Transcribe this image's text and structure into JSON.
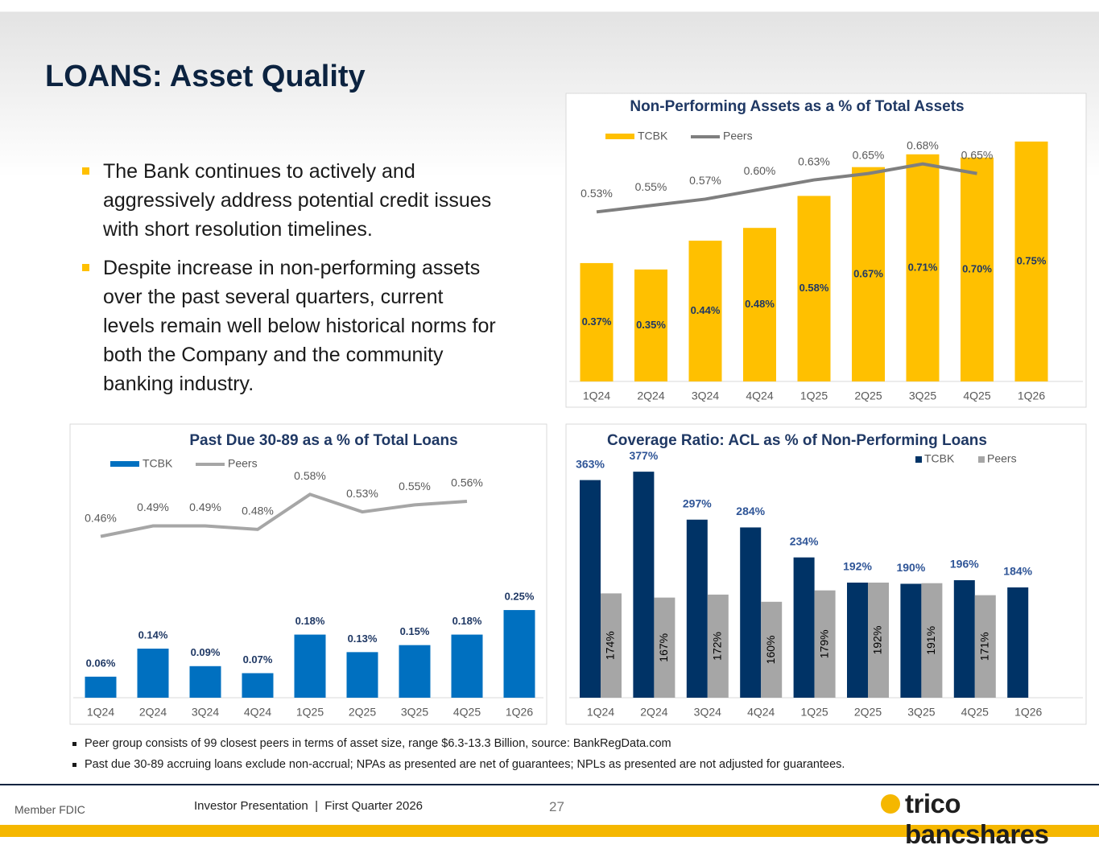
{
  "title": "LOANS: Asset Quality",
  "bullets": [
    "The Bank continues to actively and aggressively address potential credit issues with short resolution timelines.",
    "Despite increase in non-performing assets over the past several quarters, current levels remain well below historical norms for both the Company and the community banking industry."
  ],
  "notes": [
    "Peer group consists of 99 closest peers in terms of asset size, range $6.3-13.3 Billion, source: BankRegData.com",
    "Past due 30-89 accruing loans exclude non-accrual; NPAs as presented are net of guarantees; NPLs as presented are not adjusted for guarantees."
  ],
  "footer": {
    "fdic": "Member FDIC",
    "presentation": "Investor Presentation  |  First Quarter 2026",
    "page": 27,
    "logo": "trico bancshares"
  },
  "chart_data": [
    {
      "type": "bar_line",
      "title": "Non-Performing Assets as a % of Total Assets",
      "legend": "top-left",
      "categories": [
        "1Q24",
        "2Q24",
        "3Q24",
        "4Q24",
        "1Q25",
        "2Q25",
        "3Q25",
        "4Q25",
        "1Q26"
      ],
      "ylim": [
        0,
        0.8
      ],
      "series": [
        {
          "name": "TCBK",
          "type": "bar",
          "color": "#FFC000",
          "values": [
            0.37,
            0.35,
            0.44,
            0.48,
            0.58,
            0.67,
            0.71,
            0.7,
            0.75
          ],
          "value_labels": [
            "0.37%",
            "0.35%",
            "0.44%",
            "0.48%",
            "0.58%",
            "0.67%",
            "0.71%",
            "0.70%",
            "0.75%"
          ]
        },
        {
          "name": "Peers",
          "type": "line",
          "color": "#7F7F7F",
          "values": [
            0.53,
            0.55,
            0.57,
            0.6,
            0.63,
            0.65,
            0.68,
            0.65,
            null
          ],
          "value_labels": [
            "0.53%",
            "0.55%",
            "0.57%",
            "0.60%",
            "0.63%",
            "0.65%",
            "0.68%",
            "0.65%",
            null
          ]
        }
      ]
    },
    {
      "type": "bar_line",
      "title": "Past Due 30-89 as a % of Total Loans",
      "legend": "top-left",
      "categories": [
        "1Q24",
        "2Q24",
        "3Q24",
        "4Q24",
        "1Q25",
        "2Q25",
        "3Q25",
        "4Q25",
        "1Q26"
      ],
      "ylim": [
        0,
        0.7
      ],
      "series": [
        {
          "name": "TCBK",
          "type": "bar",
          "color": "#0070C0",
          "values": [
            0.06,
            0.14,
            0.09,
            0.07,
            0.18,
            0.13,
            0.15,
            0.18,
            0.25
          ],
          "value_labels": [
            "0.06%",
            "0.14%",
            "0.09%",
            "0.07%",
            "0.18%",
            "0.13%",
            "0.15%",
            "0.18%",
            "0.25%"
          ]
        },
        {
          "name": "Peers",
          "type": "line",
          "color": "#A6A6A6",
          "values": [
            0.46,
            0.49,
            0.49,
            0.48,
            0.58,
            0.53,
            0.55,
            0.56,
            null
          ],
          "value_labels": [
            "0.46%",
            "0.49%",
            "0.49%",
            "0.48%",
            "0.58%",
            "0.53%",
            "0.55%",
            "0.56%",
            null
          ]
        }
      ]
    },
    {
      "type": "grouped_bar",
      "title": "Coverage Ratio:  ACL as % of Non-Performing Loans",
      "legend": "top-right",
      "categories": [
        "1Q24",
        "2Q24",
        "3Q24",
        "4Q24",
        "1Q25",
        "2Q25",
        "3Q25",
        "4Q25",
        "1Q26"
      ],
      "ylim": [
        0,
        400
      ],
      "series": [
        {
          "name": "TCBK",
          "color": "#003366",
          "values": [
            363,
            377,
            297,
            284,
            234,
            192,
            190,
            196,
            184
          ],
          "value_labels": [
            "363%",
            "377%",
            "297%",
            "284%",
            "234%",
            "192%",
            "190%",
            "196%",
            "184%"
          ]
        },
        {
          "name": "Peers",
          "color": "#A6A6A6",
          "values": [
            174,
            167,
            172,
            160,
            179,
            192,
            191,
            171,
            null
          ],
          "value_labels": [
            "174%",
            "167%",
            "172%",
            "160%",
            "179%",
            "192%",
            "191%",
            "171%",
            null
          ]
        }
      ]
    }
  ]
}
